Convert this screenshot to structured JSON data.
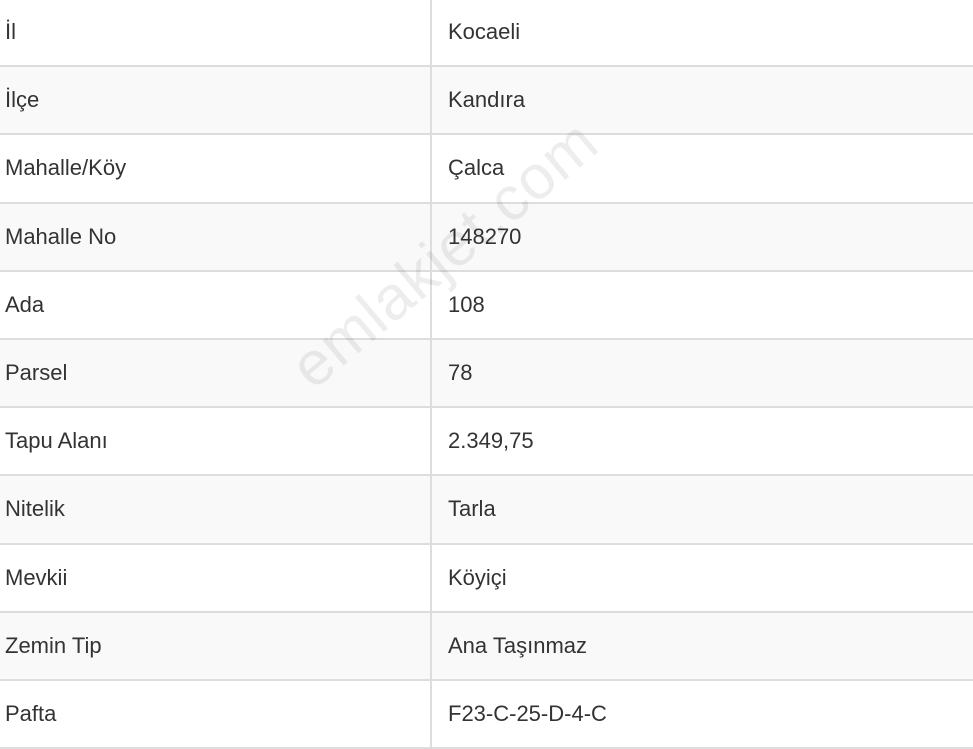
{
  "rows": [
    {
      "label": "İl",
      "value": "Kocaeli"
    },
    {
      "label": "İlçe",
      "value": "Kandıra"
    },
    {
      "label": "Mahalle/Köy",
      "value": "Çalca"
    },
    {
      "label": "Mahalle No",
      "value": "148270"
    },
    {
      "label": "Ada",
      "value": "108"
    },
    {
      "label": "Parsel",
      "value": "78"
    },
    {
      "label": "Tapu Alanı",
      "value": "2.349,75"
    },
    {
      "label": "Nitelik",
      "value": "Tarla"
    },
    {
      "label": "Mevkii",
      "value": "Köyiçi"
    },
    {
      "label": "Zemin Tip",
      "value": "Ana Taşınmaz"
    },
    {
      "label": "Pafta",
      "value": "F23-C-25-D-4-C"
    }
  ],
  "watermark": "emlakjet.com"
}
